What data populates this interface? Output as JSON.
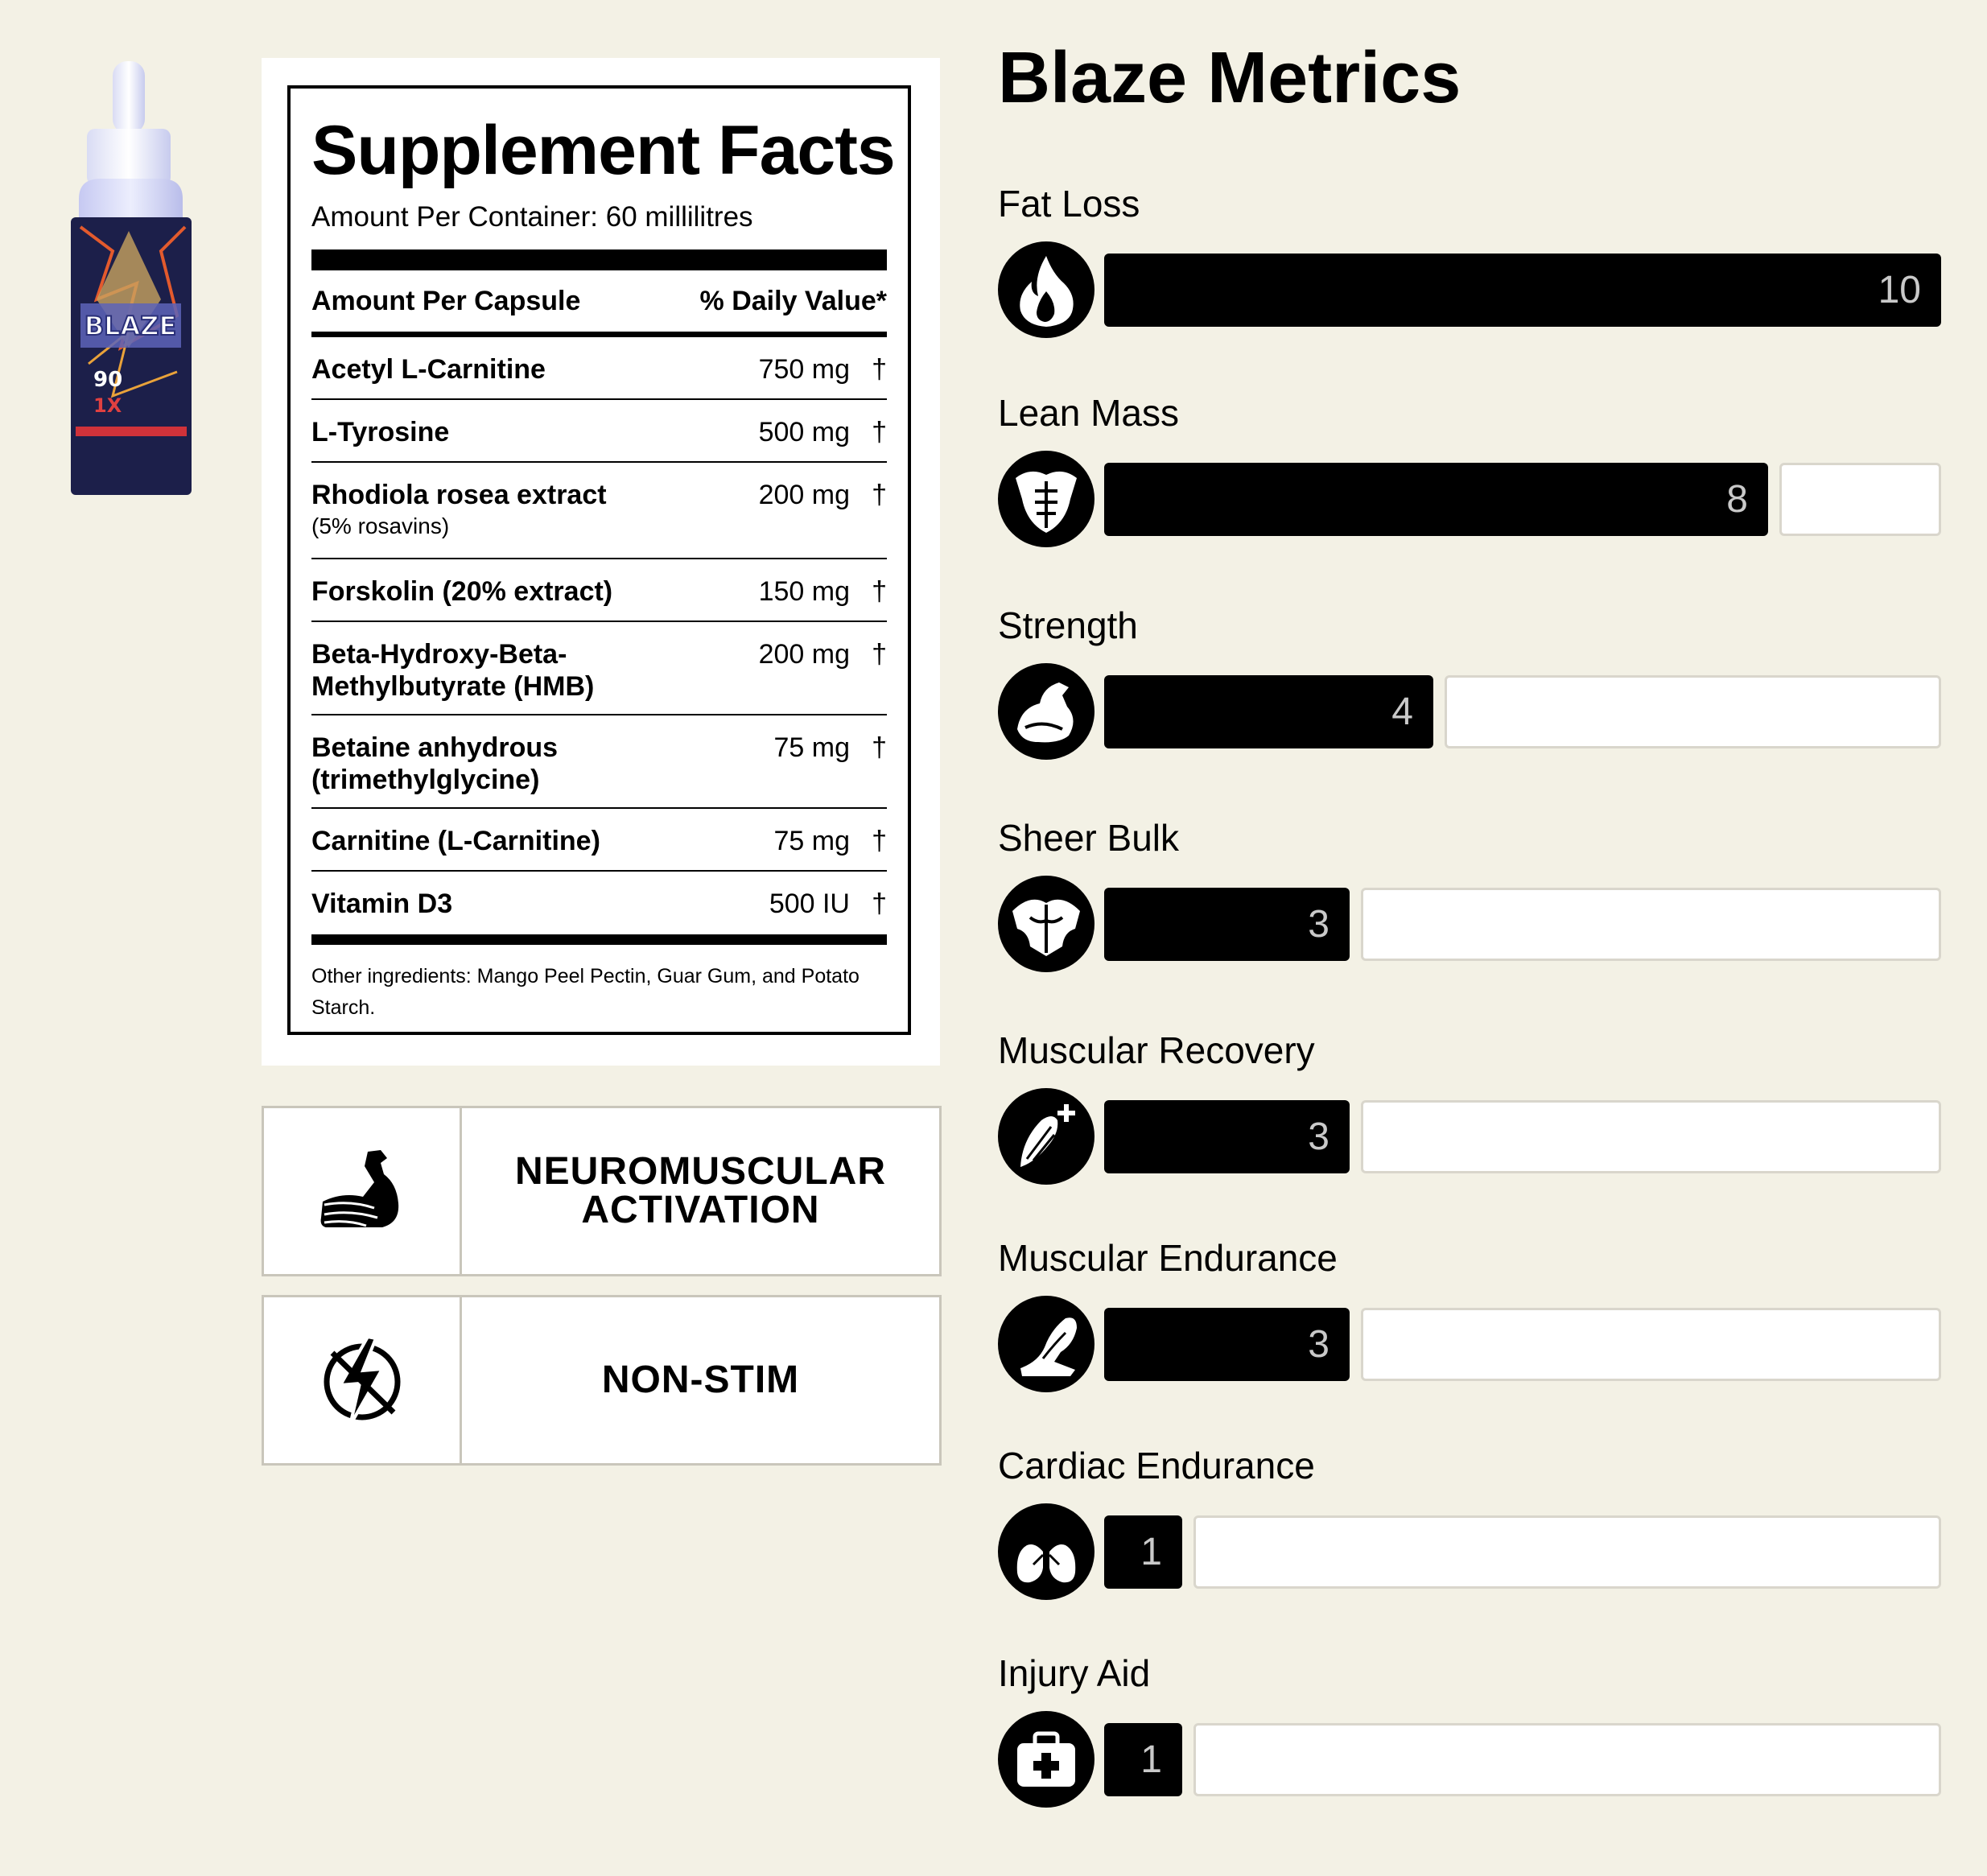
{
  "product_image": {
    "icon": "blaze-bottle-image",
    "alt_text": "BLAZE"
  },
  "facts": {
    "title": "Supplement Facts",
    "container": "Amount Per Container: 60 millilitres",
    "head_left": "Amount Per Capsule",
    "head_right": "% Daily Value*",
    "rows": [
      {
        "name": "Acetyl L-Carnitine",
        "sub": "",
        "amount": "750 mg",
        "dv": "†"
      },
      {
        "name": "L-Tyrosine",
        "sub": "",
        "amount": "500 mg",
        "dv": "†"
      },
      {
        "name": "Rhodiola rosea extract",
        "sub": "(5% rosavins)",
        "amount": "200 mg",
        "dv": "†"
      },
      {
        "name": "Forskolin (20% extract)",
        "sub": "",
        "amount": "150 mg",
        "dv": "†"
      },
      {
        "name": "Beta-Hydroxy-Beta-\nMethylbutyrate (HMB)",
        "sub": "",
        "amount": "200 mg",
        "dv": "†"
      },
      {
        "name": "Betaine anhydrous\n(trimethylglycine)",
        "sub": "",
        "amount": "75 mg",
        "dv": "†"
      },
      {
        "name": "Carnitine (L-Carnitine)",
        "sub": "",
        "amount": "75 mg",
        "dv": "†"
      },
      {
        "name": "Vitamin D3",
        "sub": "",
        "amount": "500 IU",
        "dv": "†"
      }
    ],
    "other": "Other ingredients: Mango Peel Pectin, Guar Gum, and Potato Starch."
  },
  "features": [
    {
      "label": "NEUROMUSCULAR\nACTIVATION",
      "icon": "flexed-arm-icon"
    },
    {
      "label": "NON-STIM",
      "icon": "no-stimulant-icon"
    }
  ],
  "metrics": {
    "title": "Blaze Metrics",
    "max": 10,
    "items": [
      {
        "label": "Fat Loss",
        "value": 10,
        "display": "10",
        "icon": "flame-icon"
      },
      {
        "label": "Lean Mass",
        "value": 8,
        "display": "8",
        "icon": "torso-icon"
      },
      {
        "label": "Strength",
        "value": 4,
        "display": "4",
        "icon": "bicep-icon"
      },
      {
        "label": "Sheer Bulk",
        "value": 3,
        "display": "3",
        "icon": "back-muscles-icon"
      },
      {
        "label": "Muscular Recovery",
        "value": 3,
        "display": "3",
        "icon": "muscle-plus-icon"
      },
      {
        "label": "Muscular Endurance",
        "value": 3,
        "display": "3",
        "icon": "leg-icon"
      },
      {
        "label": "Cardiac Endurance",
        "value": 1,
        "display": "1",
        "icon": "lungs-icon"
      },
      {
        "label": "Injury Aid",
        "value": 1,
        "display": "1",
        "icon": "first-aid-kit-icon"
      }
    ]
  },
  "colors": {
    "background": "#f3f1e5",
    "bar": "#000000",
    "bar_text": "#c9c9c9",
    "empty_bar": "#ffffff"
  }
}
